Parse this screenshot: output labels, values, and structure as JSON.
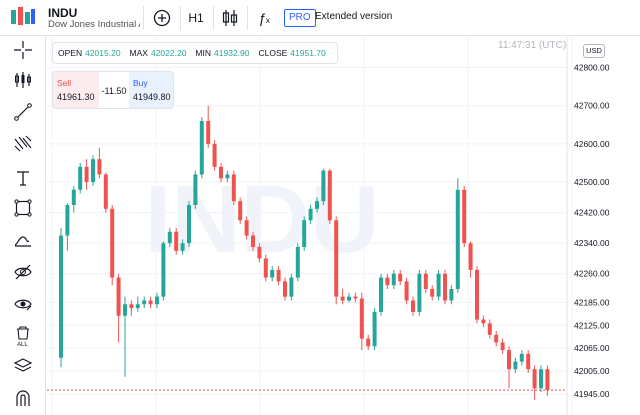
{
  "header": {
    "symbol": "INDU",
    "description": "Dow Jones Industrial Average",
    "interval": "H1",
    "pro_badge": "PRO",
    "extended_label": "Extended version"
  },
  "ohlc": {
    "open_label": "OPEN",
    "open": "42015.20",
    "max_label": "MAX",
    "max": "42022.20",
    "min_label": "MIN",
    "min": "41932.90",
    "close_label": "CLOSE",
    "close": "41951.70"
  },
  "time": "11:47:31 (UTC)",
  "currency": "USD",
  "trade": {
    "sell_label": "Sell",
    "sell_price": "41961.30",
    "spread": "-11.50",
    "buy_label": "Buy",
    "buy_price": "41949.80"
  },
  "watermark": "INDU",
  "colors": {
    "up": "#26a69a",
    "down": "#ef5350",
    "accent": "#2962ff"
  },
  "left_toolbar": [
    "crosshair-icon",
    "indicators-icon",
    "trend-line-icon",
    "fib-icon",
    "text-icon",
    "rectangle-icon",
    "brush-icon",
    "hide-drawings-icon",
    "eye-icon",
    "delete-all-icon",
    "layers-icon",
    "magnet-icon"
  ],
  "chart_data": {
    "type": "candlestick",
    "y_ticks": [
      "42800.00",
      "42700.00",
      "42600.00",
      "42500.00",
      "42420.00",
      "42340.00",
      "42260.00",
      "42185.00",
      "42125.00",
      "42065.00",
      "42005.00",
      "41945.00"
    ],
    "ylim": [
      41890,
      42880
    ],
    "current_level": 41955,
    "candles": [
      [
        42040,
        42360,
        42015,
        42380
      ],
      [
        42360,
        42440,
        42320,
        42445
      ],
      [
        42440,
        42480,
        42420,
        42490
      ],
      [
        42480,
        42540,
        42470,
        42550
      ],
      [
        42540,
        42500,
        42480,
        42560
      ],
      [
        42500,
        42560,
        42490,
        42570
      ],
      [
        42560,
        42520,
        42510,
        42590
      ],
      [
        42520,
        42430,
        42420,
        42525
      ],
      [
        42430,
        42250,
        42230,
        42440
      ],
      [
        42250,
        42150,
        42080,
        42260
      ],
      [
        42150,
        42180,
        41990,
        42200
      ],
      [
        42180,
        42170,
        42150,
        42190
      ],
      [
        42170,
        42180,
        42160,
        42200
      ],
      [
        42180,
        42190,
        42170,
        42200
      ],
      [
        42190,
        42180,
        42170,
        42200
      ],
      [
        42180,
        42200,
        42170,
        42210
      ],
      [
        42200,
        42340,
        42190,
        42345
      ],
      [
        42340,
        42370,
        42330,
        42380
      ],
      [
        42370,
        42320,
        42310,
        42380
      ],
      [
        42320,
        42340,
        42310,
        42350
      ],
      [
        42340,
        42440,
        42330,
        42450
      ],
      [
        42440,
        42520,
        42430,
        42530
      ],
      [
        42520,
        42660,
        42510,
        42670
      ],
      [
        42660,
        42600,
        42590,
        42700
      ],
      [
        42600,
        42540,
        42530,
        42610
      ],
      [
        42540,
        42510,
        42500,
        42550
      ],
      [
        42510,
        42520,
        42500,
        42530
      ],
      [
        42520,
        42450,
        42440,
        42530
      ],
      [
        42450,
        42400,
        42390,
        42460
      ],
      [
        42400,
        42360,
        42350,
        42410
      ],
      [
        42360,
        42330,
        42320,
        42370
      ],
      [
        42330,
        42300,
        42290,
        42340
      ],
      [
        42300,
        42250,
        42240,
        42310
      ],
      [
        42250,
        42270,
        42240,
        42280
      ],
      [
        42270,
        42240,
        42230,
        42280
      ],
      [
        42240,
        42200,
        42190,
        42250
      ],
      [
        42200,
        42250,
        42190,
        42260
      ],
      [
        42250,
        42330,
        42240,
        42340
      ],
      [
        42330,
        42400,
        42320,
        42410
      ],
      [
        42400,
        42430,
        42390,
        42440
      ],
      [
        42430,
        42450,
        42420,
        42460
      ],
      [
        42450,
        42530,
        42440,
        42535
      ],
      [
        42530,
        42400,
        42390,
        42535
      ],
      [
        42400,
        42200,
        42180,
        42410
      ],
      [
        42200,
        42190,
        42180,
        42220
      ],
      [
        42190,
        42200,
        42185,
        42210
      ],
      [
        42200,
        42195,
        42185,
        42210
      ],
      [
        42195,
        42090,
        42060,
        42210
      ],
      [
        42090,
        42070,
        42060,
        42100
      ],
      [
        42070,
        42160,
        42060,
        42170
      ],
      [
        42160,
        42250,
        42150,
        42260
      ],
      [
        42250,
        42230,
        42220,
        42260
      ],
      [
        42230,
        42260,
        42220,
        42270
      ],
      [
        42260,
        42240,
        42230,
        42270
      ],
      [
        42240,
        42190,
        42180,
        42250
      ],
      [
        42190,
        42160,
        42150,
        42200
      ],
      [
        42160,
        42260,
        42150,
        42270
      ],
      [
        42260,
        42220,
        42210,
        42270
      ],
      [
        42220,
        42200,
        42190,
        42230
      ],
      [
        42200,
        42260,
        42190,
        42270
      ],
      [
        42260,
        42190,
        42180,
        42270
      ],
      [
        42190,
        42220,
        42180,
        42230
      ],
      [
        42220,
        42480,
        42210,
        42510
      ],
      [
        42480,
        42340,
        42330,
        42490
      ],
      [
        42340,
        42270,
        42250,
        42345
      ],
      [
        42270,
        42140,
        42130,
        42280
      ],
      [
        42140,
        42130,
        42120,
        42150
      ],
      [
        42130,
        42100,
        42090,
        42140
      ],
      [
        42100,
        42080,
        42070,
        42110
      ],
      [
        42080,
        42060,
        42050,
        42090
      ],
      [
        42060,
        42010,
        41960,
        42070
      ],
      [
        42010,
        42030,
        42000,
        42040
      ],
      [
        42030,
        42050,
        42020,
        42060
      ],
      [
        42050,
        42010,
        42000,
        42060
      ],
      [
        42010,
        41960,
        41930,
        42020
      ],
      [
        41960,
        42010,
        41950,
        42020
      ],
      [
        42010,
        41955,
        41940,
        42020
      ]
    ]
  }
}
